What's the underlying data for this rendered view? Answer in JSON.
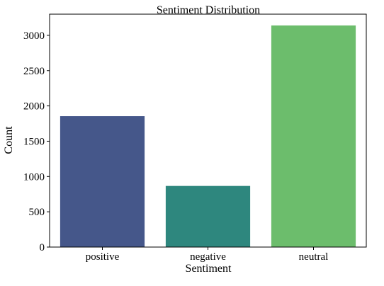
{
  "chart_data": {
    "type": "bar",
    "title": "Sentiment Distribution",
    "xlabel": "Sentiment",
    "ylabel": "Count",
    "categories": [
      "positive",
      "negative",
      "neutral"
    ],
    "values": [
      1855,
      866,
      3140
    ],
    "colors": [
      "#45578a",
      "#2e877e",
      "#6cbd6c"
    ],
    "ylim": [
      0,
      3300
    ],
    "yticks": [
      0,
      500,
      1000,
      1500,
      2000,
      2500,
      3000
    ],
    "grid": false,
    "legend": "none"
  }
}
